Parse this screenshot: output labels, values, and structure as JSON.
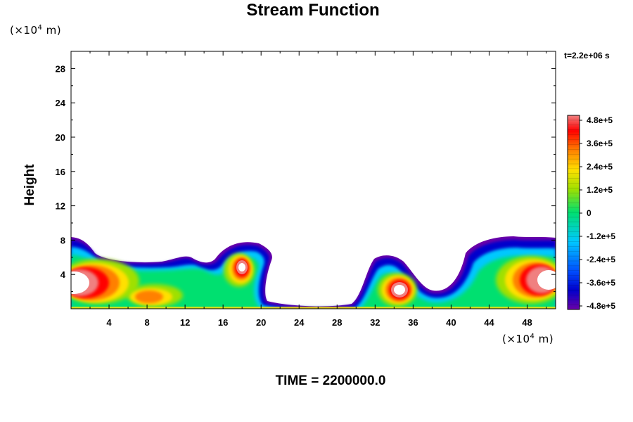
{
  "chart_data": {
    "type": "heatmap",
    "title": "Stream Function",
    "ylabel": "Height",
    "x_unit": "(×10",
    "x_unit_exp": "4",
    "x_unit_tail": " m)",
    "y_unit": "(×10",
    "y_unit_exp": "4",
    "y_unit_tail": " m)",
    "time_label": "t=2.2e+06 s",
    "footer": "TIME = 2200000.0",
    "xlim": [
      0,
      51
    ],
    "ylim": [
      0,
      30
    ],
    "x_ticks": [
      "4",
      "8",
      "12",
      "16",
      "20",
      "24",
      "28",
      "32",
      "36",
      "40",
      "44",
      "48"
    ],
    "y_ticks": [
      "4",
      "8",
      "12",
      "16",
      "20",
      "24",
      "28"
    ],
    "colorbar": {
      "range": [
        -480000,
        480000
      ],
      "labels": [
        "4.8e+5",
        "3.6e+5",
        "2.4e+5",
        "1.2e+5",
        "0",
        "-1.2e+5",
        "-2.4e+5",
        "-3.6e+5",
        "-4.8e+5"
      ],
      "colors": [
        "#6a00a8",
        "#0000cc",
        "#0050ff",
        "#00c8ff",
        "#00e070",
        "#a0e000",
        "#ffe000",
        "#ff8000",
        "#ff0000",
        "#f08080"
      ]
    }
  }
}
